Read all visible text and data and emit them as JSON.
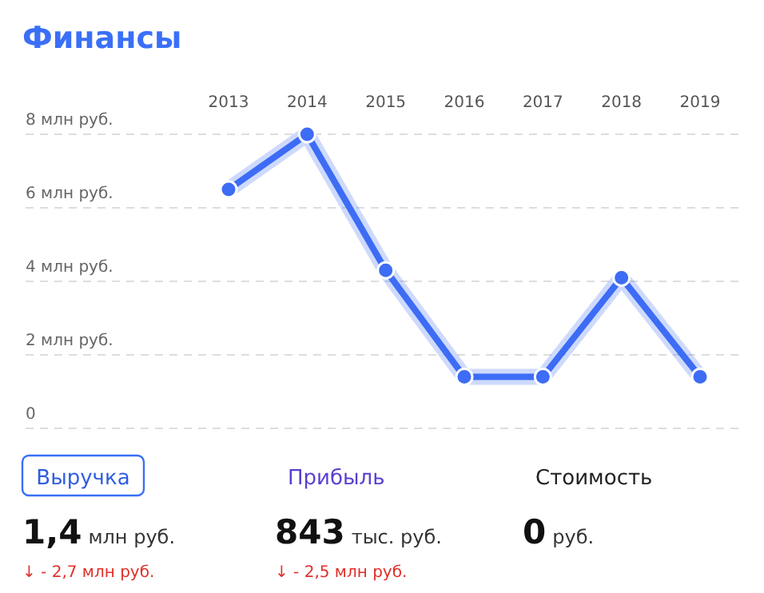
{
  "chart_data": [
    {
      "type": "line",
      "title": "Финансы",
      "categories": [
        "2013",
        "2014",
        "2015",
        "2016",
        "2017",
        "2018",
        "2019"
      ],
      "series": [
        {
          "color": "#3d6cf5",
          "values": [
            6.5,
            8,
            4.3,
            1.4,
            1.4,
            4.1,
            1.4
          ]
        }
      ],
      "ylim": [
        0,
        8
      ],
      "yticks": [
        {
          "value": 0,
          "label": "0"
        },
        {
          "value": 2,
          "label": "2 млн руб."
        },
        {
          "value": 4,
          "label": "4 млн руб."
        },
        {
          "value": 6,
          "label": "6 млн руб."
        },
        {
          "value": 8,
          "label": "8 млн руб."
        }
      ],
      "grid": "y",
      "marker": "circle",
      "line_style": "solid"
    },
    {
      "type": "other",
      "annotations": [
        "Выручка",
        "1,4",
        "млн руб.",
        "↓ - 2,7 млн руб.",
        "Прибыль",
        "843",
        "тыс. руб.",
        "↓ - 2,5 млн руб.",
        "Стоимость",
        "0",
        "руб."
      ]
    }
  ]
}
